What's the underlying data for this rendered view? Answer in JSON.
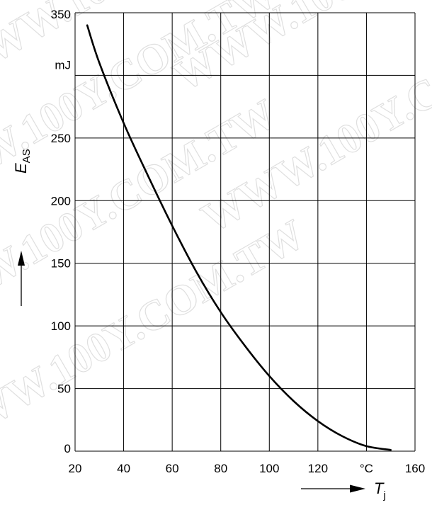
{
  "watermark": "WWW.100Y.COM.TW",
  "chart_data": {
    "type": "line",
    "xlabel": "T",
    "xlabel_sub": "j",
    "ylabel": "E",
    "ylabel_sub": "AS",
    "x_unit": "°C",
    "y_unit": "mJ",
    "xlim": [
      20,
      160
    ],
    "ylim": [
      0,
      350
    ],
    "grid": true,
    "x_ticks": [
      "20",
      "40",
      "60",
      "80",
      "100",
      "120",
      "°C",
      "160"
    ],
    "x_tick_values": [
      20,
      40,
      60,
      80,
      100,
      120,
      140,
      160
    ],
    "y_ticks": [
      "0",
      "50",
      "100",
      "150",
      "200",
      "250",
      "mJ",
      "350"
    ],
    "y_tick_values": [
      0,
      50,
      100,
      150,
      200,
      250,
      300,
      350
    ],
    "series": [
      {
        "color": "#000000",
        "x": [
          25,
          30,
          40,
          50,
          60,
          70,
          80,
          90,
          100,
          110,
          120,
          130,
          140,
          150
        ],
        "y": [
          340,
          310,
          262,
          220,
          180,
          143,
          111,
          84,
          60,
          40,
          24,
          12,
          4,
          1
        ]
      }
    ]
  }
}
